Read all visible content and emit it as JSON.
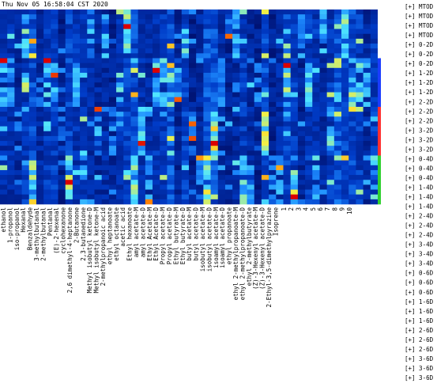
{
  "timestamp": "Thu Nov 05 16:58:04 CST 2020",
  "row_labels": [
    "[+] MTOD",
    "[+] MTOD",
    "[+] MTOD",
    "[+] MTOD",
    "[+] 0-2D",
    "[+] 0-2D",
    "[+] 0-2D",
    "[+] 1-2D",
    "[+] 1-2D",
    "[+] 1-2D",
    "[+] 2-2D",
    "[+] 2-2D",
    "[+] 2-2D",
    "[+] 3-2D",
    "[+] 3-2D",
    "[+] 3-2D",
    "[+] 0-4D",
    "[+] 0-4D",
    "[+] 0-4D",
    "[+] 1-4D",
    "[+] 1-4D",
    "[+] 1-4D",
    "[+] 2-4D",
    "[+] 2-4D",
    "[+] 2-4D",
    "[+] 3-4D",
    "[+] 3-4D",
    "[+] 3-4D",
    "[+] 0-6D",
    "[+] 0-6D",
    "[+] 0-6D",
    "[+] 1-6D",
    "[+] 1-6D",
    "[+] 1-6D",
    "[+] 2-6D",
    "[+] 2-6D",
    "[+] 2-6D",
    "[+] 3-6D",
    "[+] 3-6D",
    "[+] 3-6D"
  ],
  "column_labels": [
    "ethanol",
    "1-propanol",
    "iso-propanol",
    "Hexanal",
    "Benzaldehyde",
    "3-methylbutanal",
    "2-methylbutanal",
    "Pentanal",
    "(E)-2-hexenal",
    "cyclohexanone",
    "2,6 dimethyl-4-heptanone",
    "2-Butanone",
    "2,3-butanedione",
    "Methyl isobutyl ketone-D",
    "Methyl isobutyl ketone-M",
    "2-methylpropanoic acid",
    "ethyl heptanoate",
    "ethyl octanoate",
    "acetic acid",
    "Ethyl hexanoate",
    "amyl acetate-M",
    "amyl acetate-D",
    "Ethyl Acetate-M",
    "Ethyl Acetate-D",
    "Propyl acetate-M",
    "Propyl acetate-D",
    "Ethyl butyrate-M",
    "Ethyl butyrate-D",
    "butyl acetate-M",
    "butyl acetate-D",
    "isobutyl acetate-M",
    "isobutyl acetate-D",
    "isoamyl acetate-M",
    "isoamyl acetate-D",
    "ethyl propanoate",
    "ethyl 2-methylpropanoate-M",
    "ethyl 2-methylpropanoate-D",
    "ethyl 2-methylbutyrate",
    "(Z)-3-Hexenyl acetate-M",
    "(Z)-3-Hexenyl acetate-D",
    "2-Ethyl-3,5-dimethylpyrazine",
    "Isoprene"
  ],
  "number_labels": [
    "1",
    "2",
    "3",
    "4",
    "5",
    "6",
    "7",
    "8",
    "9",
    "10"
  ]
}
